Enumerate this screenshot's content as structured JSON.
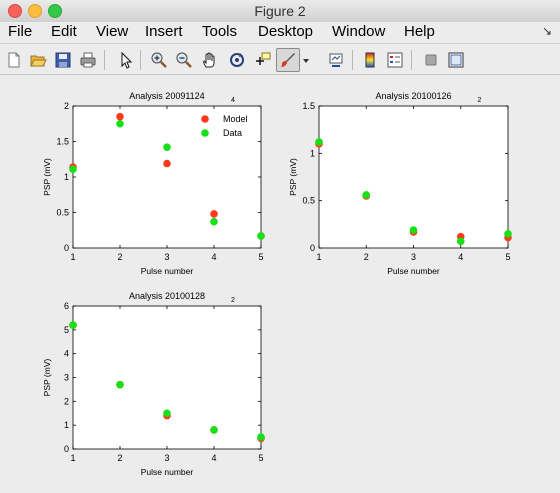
{
  "window": {
    "title": "Figure 2"
  },
  "menu": [
    "File",
    "Edit",
    "View",
    "Insert",
    "Tools",
    "Desktop",
    "Window",
    "Help"
  ],
  "menu_arrow": "↘",
  "toolbar": [
    {
      "name": "new-figure-icon"
    },
    {
      "name": "open-file-icon"
    },
    {
      "name": "save-icon"
    },
    {
      "name": "print-icon"
    },
    {
      "name": "pointer-icon"
    },
    {
      "name": "zoom-in-icon"
    },
    {
      "name": "zoom-out-icon"
    },
    {
      "name": "pan-hand-icon"
    },
    {
      "name": "rotate-3d-icon"
    },
    {
      "name": "data-cursor-icon"
    },
    {
      "name": "brush-icon"
    },
    {
      "name": "brush-dropdown-icon"
    },
    {
      "name": "link-plot-icon"
    },
    {
      "name": "colorbar-icon"
    },
    {
      "name": "legend-icon"
    },
    {
      "name": "hide-plot-tools-icon"
    },
    {
      "name": "show-plot-tools-icon"
    }
  ],
  "colors": {
    "model": "#ff3a1a",
    "data": "#16e016"
  },
  "chart_data": [
    {
      "type": "scatter",
      "title": "Analysis 20091124",
      "title_subscript": "4",
      "xlabel": "Pulse number",
      "ylabel": "PSP (mV)",
      "xlim": [
        1,
        5
      ],
      "ylim": [
        0,
        2
      ],
      "xticks": [
        "1",
        "2",
        "3",
        "4",
        "5"
      ],
      "yticks": [
        "0",
        "0.5",
        "1",
        "1.5",
        "2"
      ],
      "legend": {
        "placement": "top-right",
        "entries": [
          "Model",
          "Data"
        ]
      },
      "series": [
        {
          "name": "Model",
          "x": [
            1,
            2,
            3,
            4,
            5
          ],
          "y": [
            1.14,
            1.85,
            1.19,
            0.48,
            0.17
          ]
        },
        {
          "name": "Data",
          "x": [
            1,
            2,
            3,
            4,
            5
          ],
          "y": [
            1.11,
            1.75,
            1.42,
            0.37,
            0.17
          ]
        }
      ]
    },
    {
      "type": "scatter",
      "title": "Analysis 20100126",
      "title_subscript": "2",
      "xlabel": "Pulse number",
      "ylabel": "PSP (mV)",
      "xlim": [
        1,
        5
      ],
      "ylim": [
        0,
        1.5
      ],
      "xticks": [
        "1",
        "2",
        "3",
        "4",
        "5"
      ],
      "yticks": [
        "0",
        "0.5",
        "1",
        "1.5"
      ],
      "series": [
        {
          "name": "Model",
          "x": [
            1,
            2,
            3,
            4,
            5
          ],
          "y": [
            1.1,
            0.55,
            0.17,
            0.12,
            0.11
          ]
        },
        {
          "name": "Data",
          "x": [
            1,
            2,
            3,
            4,
            5
          ],
          "y": [
            1.12,
            0.56,
            0.19,
            0.07,
            0.15
          ]
        }
      ]
    },
    {
      "type": "scatter",
      "title": "Analysis 20100128",
      "title_subscript": "2",
      "xlabel": "Pulse number",
      "ylabel": "PSP (mV)",
      "xlim": [
        1,
        5
      ],
      "ylim": [
        0,
        6
      ],
      "xticks": [
        "1",
        "2",
        "3",
        "4",
        "5"
      ],
      "yticks": [
        "0",
        "1",
        "2",
        "3",
        "4",
        "5",
        "6"
      ],
      "series": [
        {
          "name": "Model",
          "x": [
            1,
            2,
            3,
            4,
            5
          ],
          "y": [
            5.2,
            2.7,
            1.4,
            0.8,
            0.45
          ]
        },
        {
          "name": "Data",
          "x": [
            1,
            2,
            3,
            4,
            5
          ],
          "y": [
            5.2,
            2.7,
            1.5,
            0.8,
            0.5
          ]
        }
      ]
    }
  ]
}
